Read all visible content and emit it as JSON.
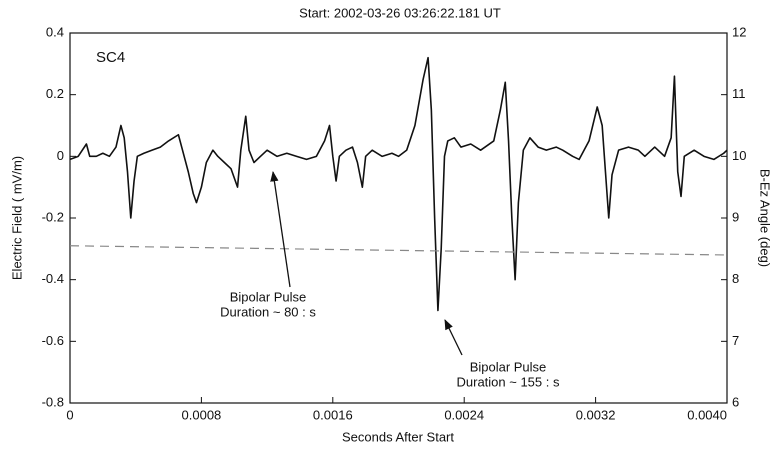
{
  "chart_data": {
    "type": "line",
    "title": "Start:  2002-03-26 03:26:22.181 UT",
    "panel_label": "SC4",
    "xlabel": "Seconds After Start",
    "ylabel": "Electric Field ( mV/m)",
    "y2label": "B-Ez Angle (deg)",
    "xlim": [
      0,
      0.004
    ],
    "xticks": [
      0,
      0.0008,
      0.0016,
      0.0024,
      0.0032,
      {
        "value": 0.004,
        "label": "0.0040"
      }
    ],
    "ylim": [
      -0.8,
      0.4
    ],
    "yticks": [
      0.4,
      0.2,
      0,
      -0.2,
      -0.4,
      -0.6,
      -0.8
    ],
    "y2lim": [
      6,
      12
    ],
    "y2ticks": [
      6,
      7,
      8,
      9,
      10,
      11,
      12
    ],
    "series": [
      {
        "color": "#111111",
        "x": [
          0,
          5e-05,
          0.0001,
          0.00012,
          0.00016,
          0.0002,
          0.00024,
          0.00028,
          0.00031,
          0.00033,
          0.00035,
          0.00037,
          0.00039,
          0.00041,
          0.00045,
          0.0005,
          0.00055,
          0.0006,
          0.00066,
          0.00068,
          0.00072,
          0.00075,
          0.00077,
          0.0008,
          0.00083,
          0.00087,
          0.0009,
          0.00094,
          0.00098,
          0.00102,
          0.00104,
          0.00107,
          0.00109,
          0.00112,
          0.00116,
          0.0012,
          0.00126,
          0.00132,
          0.00138,
          0.00144,
          0.0015,
          0.00155,
          0.00158,
          0.0016,
          0.00162,
          0.00164,
          0.00168,
          0.00172,
          0.00175,
          0.00178,
          0.0018,
          0.00184,
          0.0019,
          0.00196,
          0.002,
          0.00205,
          0.0021,
          0.00215,
          0.00218,
          0.0022,
          0.00222,
          0.00224,
          0.00226,
          0.00228,
          0.0023,
          0.00234,
          0.00238,
          0.00244,
          0.0025,
          0.00258,
          0.00262,
          0.00265,
          0.00267,
          0.00269,
          0.00271,
          0.00273,
          0.00276,
          0.0028,
          0.00285,
          0.0029,
          0.00296,
          0.003,
          0.00306,
          0.0031,
          0.00316,
          0.00321,
          0.00324,
          0.00326,
          0.00328,
          0.0033,
          0.00334,
          0.0034,
          0.00346,
          0.0035,
          0.00356,
          0.00362,
          0.00366,
          0.00368,
          0.0037,
          0.00372,
          0.00374,
          0.0038,
          0.00386,
          0.00392,
          0.00398,
          0.004
        ],
        "values": [
          -0.01,
          0.0,
          0.04,
          0.0,
          0.0,
          0.01,
          0.0,
          0.03,
          0.1,
          0.06,
          -0.05,
          -0.2,
          -0.08,
          0.0,
          0.01,
          0.02,
          0.03,
          0.05,
          0.07,
          0.03,
          -0.05,
          -0.12,
          -0.15,
          -0.1,
          -0.02,
          0.02,
          0.0,
          -0.02,
          -0.04,
          -0.1,
          0.02,
          0.13,
          0.02,
          -0.02,
          0.0,
          0.02,
          0.0,
          0.01,
          0.0,
          -0.01,
          0.0,
          0.05,
          0.1,
          0.0,
          -0.08,
          0.0,
          0.02,
          0.03,
          -0.02,
          -0.1,
          0.0,
          0.02,
          0.0,
          0.01,
          0.0,
          0.02,
          0.1,
          0.25,
          0.32,
          0.15,
          -0.2,
          -0.5,
          -0.3,
          0.0,
          0.05,
          0.06,
          0.03,
          0.04,
          0.02,
          0.05,
          0.15,
          0.24,
          0.05,
          -0.2,
          -0.4,
          -0.15,
          0.02,
          0.06,
          0.03,
          0.02,
          0.03,
          0.02,
          0.0,
          -0.01,
          0.05,
          0.16,
          0.1,
          -0.05,
          -0.2,
          -0.06,
          0.02,
          0.03,
          0.02,
          0.0,
          0.03,
          0.0,
          0.06,
          0.26,
          -0.05,
          -0.13,
          0.0,
          0.02,
          0.0,
          -0.01,
          0.01,
          0.02
        ]
      },
      {
        "color": "#888888",
        "axis": "y2",
        "dashed": true,
        "x": [
          0,
          0.004
        ],
        "values": [
          8.55,
          8.4
        ]
      }
    ],
    "annotations": [
      {
        "lines": [
          "Bipolar Pulse",
          "Duration ~ 80 : s"
        ]
      },
      {
        "lines": [
          "Bipolar Pulse",
          "Duration ~ 155 : s"
        ]
      }
    ]
  }
}
